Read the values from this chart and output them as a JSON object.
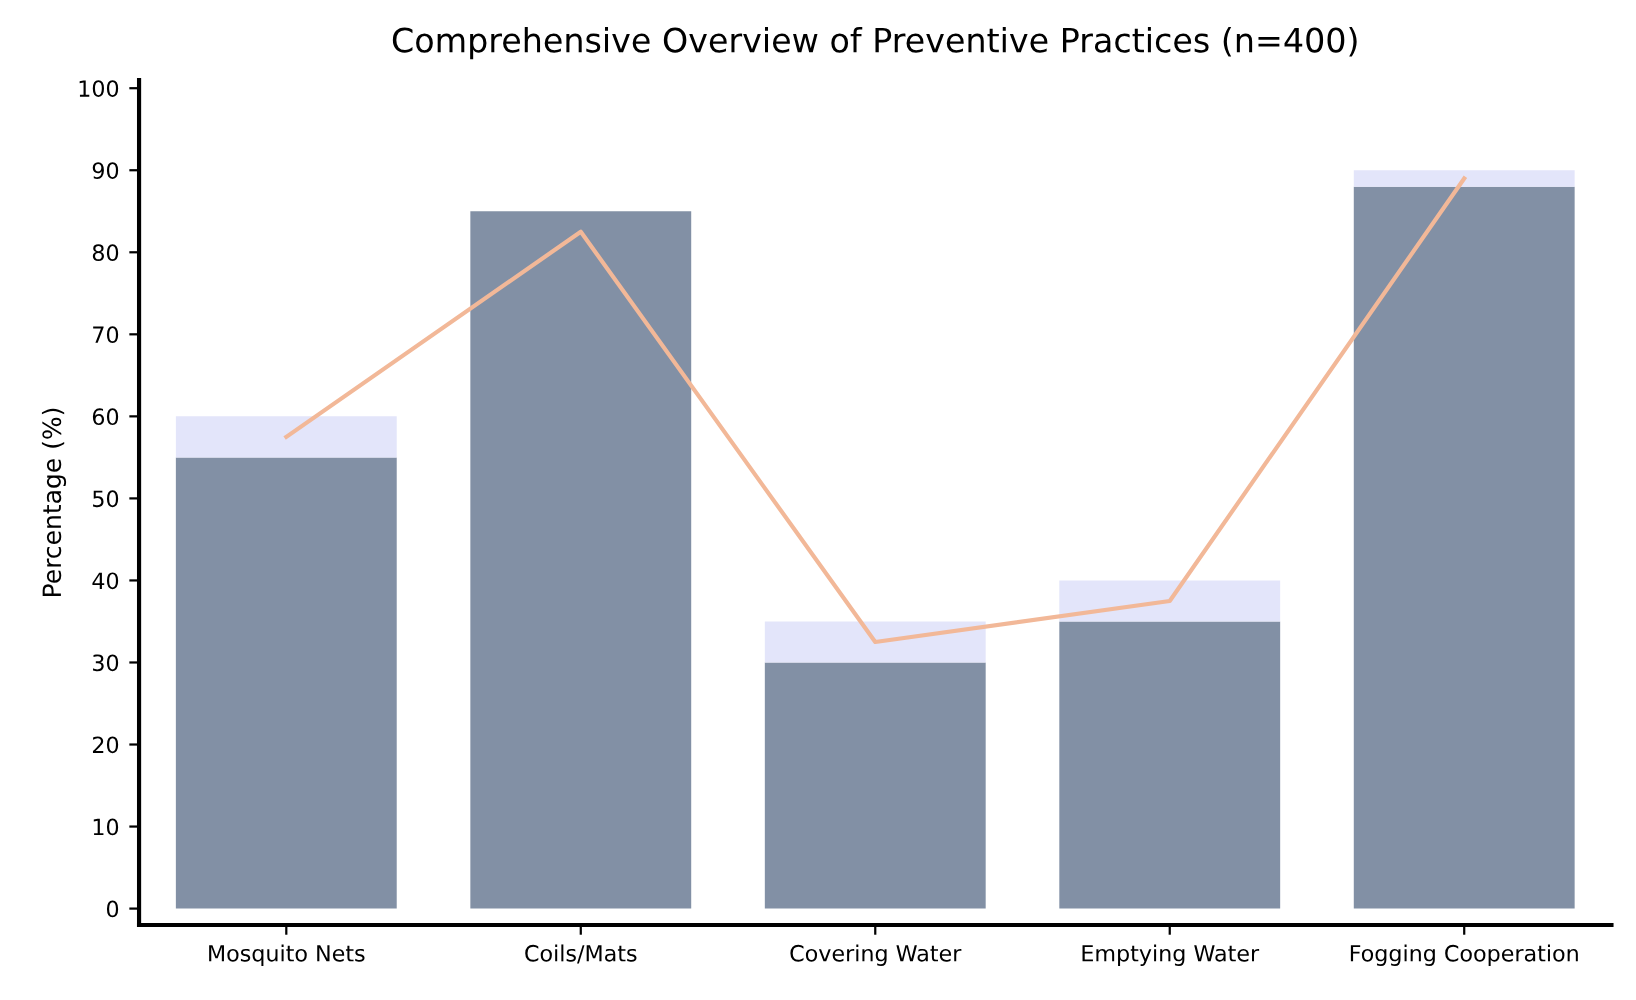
{
  "chart_data": {
    "type": "bar",
    "title": "Comprehensive Overview of Preventive Practices (n=400)",
    "ylabel": "Percentage (%)",
    "categories": [
      "Mosquito Nets",
      "Coils/Mats",
      "Covering Water",
      "Emptying Water",
      "Fogging Cooperation"
    ],
    "stacked": true,
    "series": [
      {
        "color": "#8290a5",
        "values": [
          55,
          85,
          30,
          35,
          88
        ]
      },
      {
        "color": "#e3e5fa",
        "values": [
          5,
          null,
          5,
          5,
          2
        ]
      },
      {
        "type": "line",
        "color": "#f2b898",
        "values": [
          57.5,
          82.5,
          32.5,
          37.5,
          89
        ]
      }
    ],
    "ylim": [
      -2,
      101
    ],
    "yticks": [
      0,
      10,
      20,
      30,
      40,
      50,
      60,
      70,
      80,
      90,
      100
    ],
    "grid": false
  }
}
